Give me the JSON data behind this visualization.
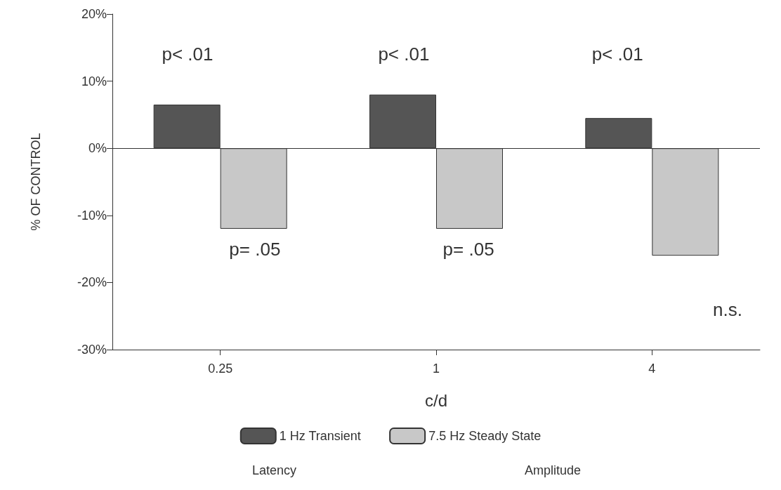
{
  "chart_data": {
    "type": "bar",
    "xlabel": "c/d",
    "ylabel": "% OF CONTROL",
    "categories": [
      "0.25",
      "1",
      "4"
    ],
    "series": [
      {
        "name": "1 Hz Transient",
        "color": "#555555",
        "values": [
          6.5,
          8,
          4.5
        ]
      },
      {
        "name": "7.5 Hz Steady State",
        "color": "#c8c8c8",
        "values": [
          -12,
          -12,
          -16
        ]
      }
    ],
    "ylim": [
      -30,
      20
    ],
    "yticks": [
      {
        "value": -30,
        "label": "-30%"
      },
      {
        "value": -20,
        "label": "-20%"
      },
      {
        "value": -10,
        "label": "-10%"
      },
      {
        "value": 0,
        "label": "0%"
      },
      {
        "value": 10,
        "label": "10%"
      },
      {
        "value": 20,
        "label": "20%"
      }
    ],
    "grid": false,
    "legend": "bottom",
    "ref_lines": [
      {
        "axis": "y",
        "value": 0,
        "color": "#333333"
      }
    ],
    "annotations": [
      "p< .01",
      "p< .01",
      "p< .01",
      "p= .05",
      "p= .05",
      "n.s.",
      "Latency",
      "Amplitude"
    ]
  }
}
